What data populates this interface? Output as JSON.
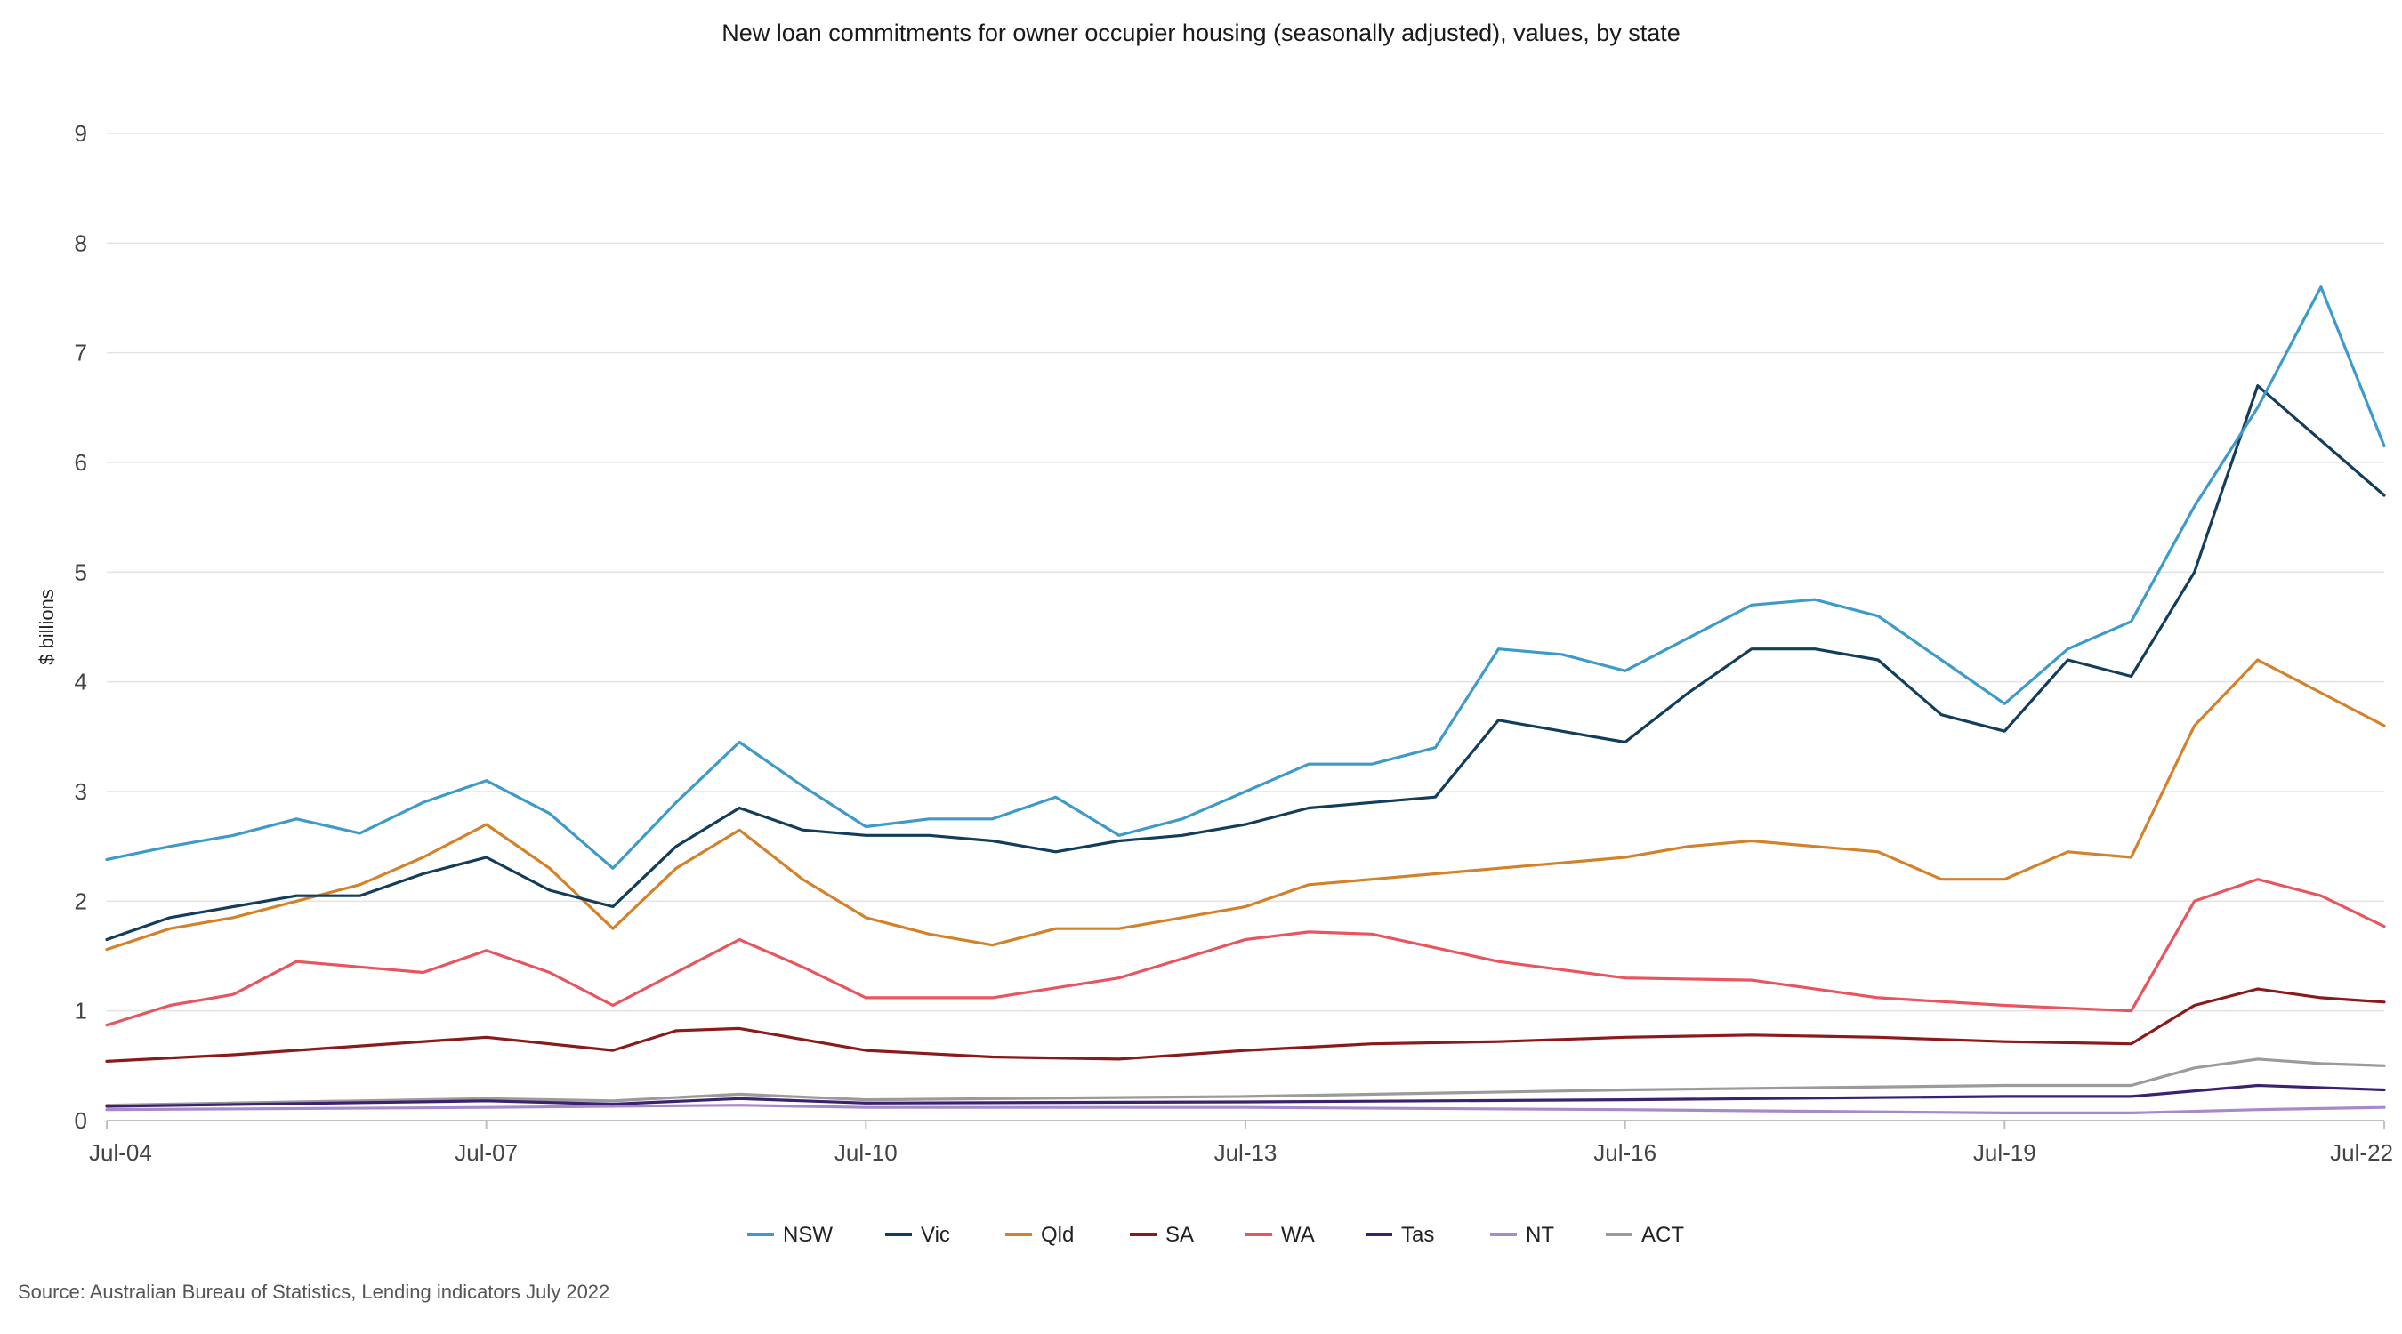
{
  "chart_data": {
    "type": "line",
    "title": "New loan commitments for owner occupier housing (seasonally adjusted), values, by state",
    "ylabel": "$ billions",
    "xlabel": "",
    "ylim": [
      0,
      9
    ],
    "yticks": [
      0,
      1,
      2,
      3,
      4,
      5,
      6,
      7,
      8,
      9
    ],
    "xtick_labels": [
      "Jul-04",
      "Jul-07",
      "Jul-10",
      "Jul-13",
      "Jul-16",
      "Jul-19",
      "Jul-22"
    ],
    "x_start": "2004-07",
    "x_end": "2022-07",
    "grid": "horizontal",
    "legend_position": "bottom",
    "series": [
      {
        "name": "NSW",
        "color": "#3e9ac9",
        "x": [
          "2004-07",
          "2005-01",
          "2005-07",
          "2006-01",
          "2006-07",
          "2007-01",
          "2007-07",
          "2008-01",
          "2008-07",
          "2009-01",
          "2009-07",
          "2010-01",
          "2010-07",
          "2011-01",
          "2011-07",
          "2012-01",
          "2012-07",
          "2013-01",
          "2013-07",
          "2014-01",
          "2014-07",
          "2015-01",
          "2015-07",
          "2016-01",
          "2016-07",
          "2017-01",
          "2017-07",
          "2018-01",
          "2018-07",
          "2019-01",
          "2019-07",
          "2020-01",
          "2020-07",
          "2021-01",
          "2021-07",
          "2022-01",
          "2022-07"
        ],
        "y": [
          2.38,
          2.5,
          2.6,
          2.75,
          2.62,
          2.9,
          3.1,
          2.8,
          2.3,
          2.9,
          3.45,
          3.05,
          2.68,
          2.75,
          2.75,
          2.95,
          2.6,
          2.75,
          3.0,
          3.25,
          3.25,
          3.4,
          4.3,
          4.25,
          4.1,
          4.4,
          4.7,
          4.75,
          4.6,
          4.2,
          3.8,
          4.3,
          4.55,
          5.6,
          6.5,
          7.6,
          6.15
        ]
      },
      {
        "name": "Vic",
        "color": "#123e5c",
        "x": [
          "2004-07",
          "2005-01",
          "2005-07",
          "2006-01",
          "2006-07",
          "2007-01",
          "2007-07",
          "2008-01",
          "2008-07",
          "2009-01",
          "2009-07",
          "2010-01",
          "2010-07",
          "2011-01",
          "2011-07",
          "2012-01",
          "2012-07",
          "2013-01",
          "2013-07",
          "2014-01",
          "2014-07",
          "2015-01",
          "2015-07",
          "2016-01",
          "2016-07",
          "2017-01",
          "2017-07",
          "2018-01",
          "2018-07",
          "2019-01",
          "2019-07",
          "2020-01",
          "2020-07",
          "2021-01",
          "2021-07",
          "2022-01",
          "2022-07"
        ],
        "y": [
          1.65,
          1.85,
          1.95,
          2.05,
          2.05,
          2.25,
          2.4,
          2.1,
          1.95,
          2.5,
          2.85,
          2.65,
          2.6,
          2.6,
          2.55,
          2.45,
          2.55,
          2.6,
          2.7,
          2.85,
          2.9,
          2.95,
          3.65,
          3.55,
          3.45,
          3.9,
          4.3,
          4.3,
          4.2,
          3.7,
          3.55,
          4.2,
          4.05,
          5.0,
          6.7,
          6.2,
          5.7
        ]
      },
      {
        "name": "Qld",
        "color": "#d4822a",
        "x": [
          "2004-07",
          "2005-01",
          "2005-07",
          "2006-01",
          "2006-07",
          "2007-01",
          "2007-07",
          "2008-01",
          "2008-07",
          "2009-01",
          "2009-07",
          "2010-01",
          "2010-07",
          "2011-01",
          "2011-07",
          "2012-01",
          "2012-07",
          "2013-01",
          "2013-07",
          "2014-01",
          "2014-07",
          "2015-01",
          "2015-07",
          "2016-01",
          "2016-07",
          "2017-01",
          "2017-07",
          "2018-01",
          "2018-07",
          "2019-01",
          "2019-07",
          "2020-01",
          "2020-07",
          "2021-01",
          "2021-07",
          "2022-01",
          "2022-07"
        ],
        "y": [
          1.56,
          1.75,
          1.85,
          2.0,
          2.15,
          2.4,
          2.7,
          2.3,
          1.75,
          2.3,
          2.65,
          2.2,
          1.85,
          1.7,
          1.6,
          1.75,
          1.75,
          1.85,
          1.95,
          2.15,
          2.2,
          2.25,
          2.3,
          2.35,
          2.4,
          2.5,
          2.55,
          2.5,
          2.45,
          2.2,
          2.2,
          2.45,
          2.4,
          3.6,
          4.2,
          3.9,
          3.6
        ]
      },
      {
        "name": "SA",
        "color": "#8b1a1a",
        "x": [
          "2004-07",
          "2005-07",
          "2006-07",
          "2007-07",
          "2008-07",
          "2009-01",
          "2009-07",
          "2010-07",
          "2011-07",
          "2012-07",
          "2013-07",
          "2014-07",
          "2015-07",
          "2016-07",
          "2017-07",
          "2018-07",
          "2019-07",
          "2020-07",
          "2021-01",
          "2021-07",
          "2022-01",
          "2022-07"
        ],
        "y": [
          0.54,
          0.6,
          0.68,
          0.76,
          0.64,
          0.82,
          0.84,
          0.64,
          0.58,
          0.56,
          0.64,
          0.7,
          0.72,
          0.76,
          0.78,
          0.76,
          0.72,
          0.7,
          1.05,
          1.2,
          1.12,
          1.08
        ]
      },
      {
        "name": "WA",
        "color": "#e8555e",
        "x": [
          "2004-07",
          "2005-01",
          "2005-07",
          "2006-01",
          "2006-07",
          "2007-01",
          "2007-07",
          "2008-01",
          "2008-07",
          "2009-01",
          "2009-07",
          "2010-01",
          "2010-07",
          "2011-07",
          "2012-07",
          "2013-07",
          "2014-01",
          "2014-07",
          "2015-07",
          "2016-07",
          "2017-07",
          "2018-07",
          "2019-07",
          "2020-07",
          "2021-01",
          "2021-07",
          "2022-01",
          "2022-07"
        ],
        "y": [
          0.87,
          1.05,
          1.15,
          1.45,
          1.4,
          1.35,
          1.55,
          1.35,
          1.05,
          1.35,
          1.65,
          1.4,
          1.12,
          1.12,
          1.3,
          1.65,
          1.72,
          1.7,
          1.45,
          1.3,
          1.28,
          1.12,
          1.05,
          1.0,
          2.0,
          2.2,
          2.05,
          1.77
        ]
      },
      {
        "name": "Tas",
        "color": "#3a2270",
        "x": [
          "2004-07",
          "2007-07",
          "2008-07",
          "2009-07",
          "2010-07",
          "2013-07",
          "2016-07",
          "2019-07",
          "2020-07",
          "2021-07",
          "2022-07"
        ],
        "y": [
          0.13,
          0.18,
          0.15,
          0.2,
          0.16,
          0.17,
          0.19,
          0.22,
          0.22,
          0.32,
          0.28
        ]
      },
      {
        "name": "NT",
        "color": "#a98ac9",
        "x": [
          "2004-07",
          "2007-07",
          "2009-07",
          "2010-07",
          "2013-07",
          "2016-07",
          "2019-07",
          "2020-07",
          "2021-07",
          "2022-07"
        ],
        "y": [
          0.1,
          0.12,
          0.14,
          0.12,
          0.12,
          0.1,
          0.07,
          0.07,
          0.1,
          0.12
        ]
      },
      {
        "name": "ACT",
        "color": "#9b9b9b",
        "x": [
          "2004-07",
          "2007-07",
          "2008-07",
          "2009-07",
          "2010-07",
          "2013-07",
          "2016-07",
          "2019-07",
          "2020-07",
          "2021-01",
          "2021-07",
          "2022-01",
          "2022-07"
        ],
        "y": [
          0.14,
          0.2,
          0.18,
          0.24,
          0.19,
          0.22,
          0.28,
          0.32,
          0.32,
          0.48,
          0.56,
          0.52,
          0.5
        ]
      }
    ]
  },
  "footer": {
    "source": "Source: Australian Bureau of Statistics, Lending indicators July 2022"
  }
}
